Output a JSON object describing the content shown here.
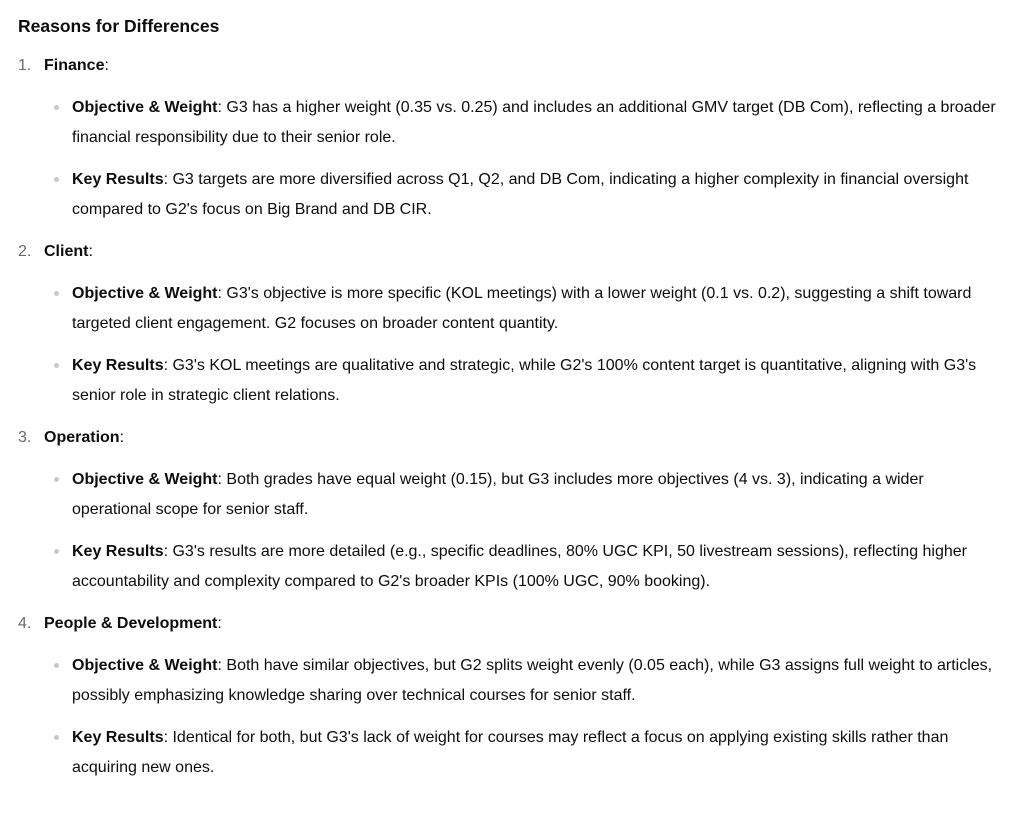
{
  "heading": "Reasons for Differences",
  "sections": [
    {
      "number": "1.",
      "title": "Finance",
      "bullets": [
        {
          "label": "Objective & Weight",
          "text": ": G3 has a higher weight (0.35 vs. 0.25) and includes an additional GMV target (DB Com), reflecting a broader financial responsibility due to their senior role."
        },
        {
          "label": "Key Results",
          "text": ": G3 targets are more diversified across Q1, Q2, and DB Com, indicating a higher complexity in financial oversight compared to G2's focus on Big Brand and DB CIR."
        }
      ]
    },
    {
      "number": "2.",
      "title": "Client",
      "bullets": [
        {
          "label": "Objective & Weight",
          "text": ": G3's objective is more specific (KOL meetings) with a lower weight (0.1 vs. 0.2), suggesting a shift toward targeted client engagement. G2 focuses on broader content quantity."
        },
        {
          "label": "Key Results",
          "text": ": G3's KOL meetings are qualitative and strategic, while G2's 100% content target is quantitative, aligning with G3's senior role in strategic client relations."
        }
      ]
    },
    {
      "number": "3.",
      "title": "Operation",
      "bullets": [
        {
          "label": "Objective & Weight",
          "text": ": Both grades have equal weight (0.15), but G3 includes more objectives (4 vs. 3), indicating a wider operational scope for senior staff."
        },
        {
          "label": "Key Results",
          "text": ": G3's results are more detailed (e.g., specific deadlines, 80% UGC KPI, 50 livestream sessions), reflecting higher accountability and complexity compared to G2's broader KPIs (100% UGC, 90% booking)."
        }
      ]
    },
    {
      "number": "4.",
      "title": "People & Development",
      "bullets": [
        {
          "label": "Objective & Weight",
          "text": ": Both have similar objectives, but G2 splits weight evenly (0.05 each), while G3 assigns full weight to articles, possibly emphasizing knowledge sharing over technical courses for senior staff."
        },
        {
          "label": "Key Results",
          "text": ": Identical for both, but G3's lack of weight for courses may reflect a focus on applying existing skills rather than acquiring new ones."
        }
      ]
    }
  ]
}
